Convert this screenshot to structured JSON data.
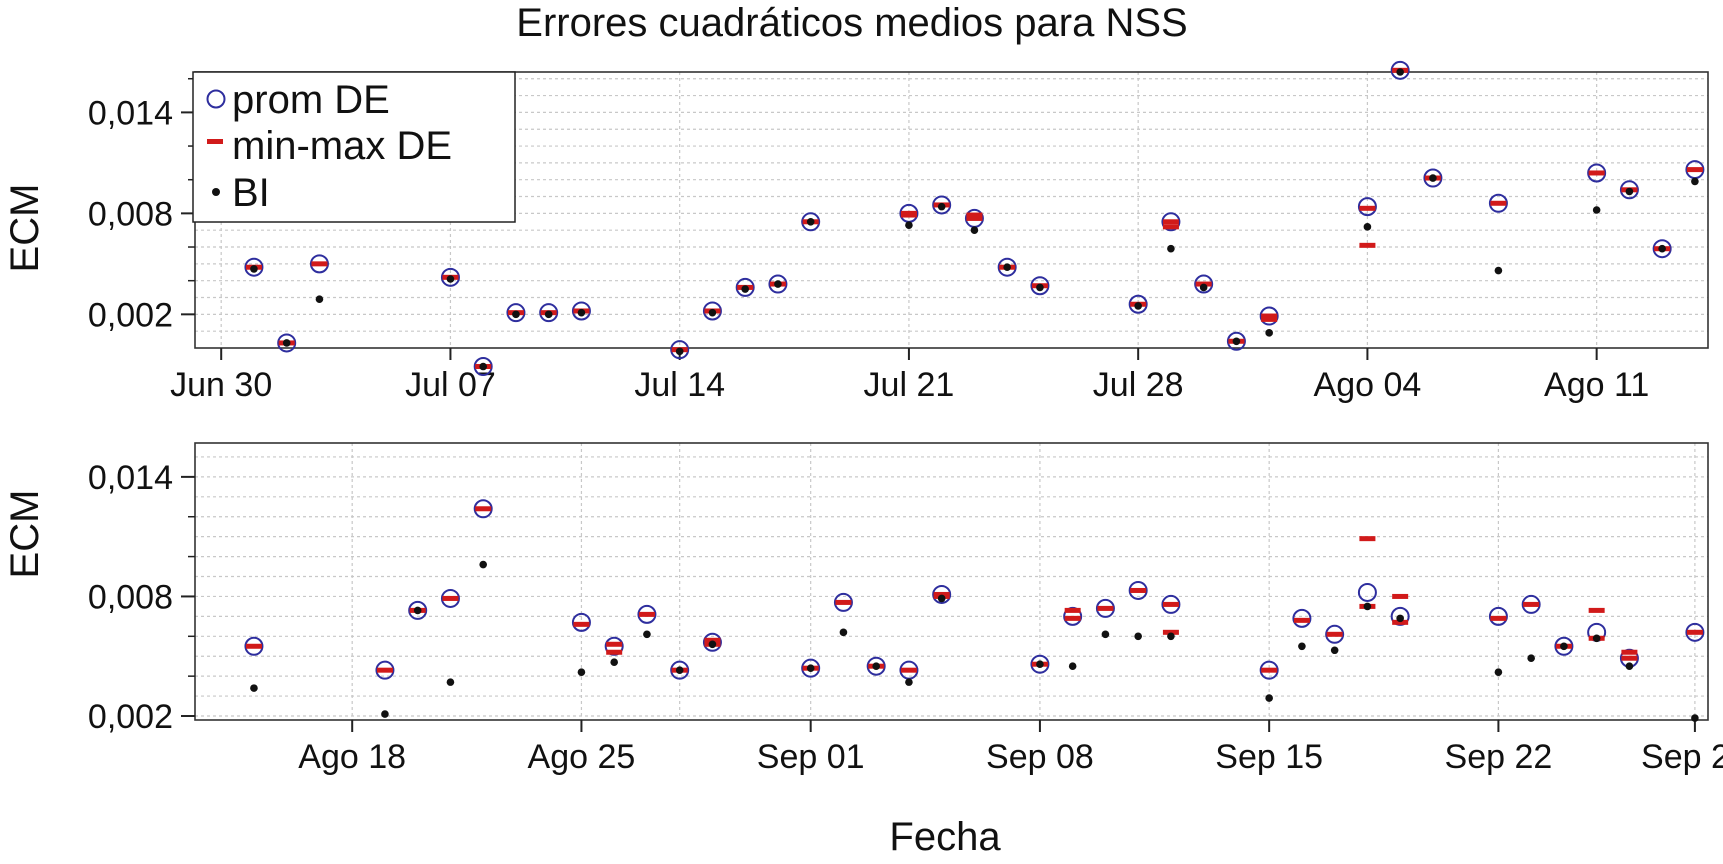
{
  "chart_data": {
    "type": "scatter",
    "title": "Errores cuadráticos medios para NSS",
    "xlabel": "Fecha",
    "ylabel": "ECM",
    "y_format": "comma-decimal",
    "legend": {
      "placement": "top-left (upper panel)",
      "entries": [
        {
          "label": "prom DE",
          "marker": "open-circle",
          "color": "#2e2e9e"
        },
        {
          "label": "min-max DE",
          "marker": "dash",
          "color": "#d11a1a"
        },
        {
          "label": "BI",
          "marker": "dot",
          "color": "#111111"
        }
      ]
    },
    "panels": [
      {
        "xlim": [
          -0.8,
          45.4
        ],
        "ylim": [
          0.0,
          0.0164
        ],
        "yticks": [
          0.002,
          0.008,
          0.014
        ],
        "ytick_labels": [
          "0,002",
          "0,008",
          "0,014"
        ],
        "xticks": [
          0,
          7,
          14,
          21,
          28,
          35,
          42
        ],
        "xtick_labels": [
          "Jun 30",
          "Jul 07",
          "Jul 14",
          "Jul 21",
          "Jul 28",
          "Ago 04",
          "Ago 11"
        ],
        "vgrid": [
          0,
          7,
          14,
          21,
          28,
          35,
          42
        ],
        "prom": [
          [
            1,
            0.0048
          ],
          [
            2,
            0.0003
          ],
          [
            3,
            0.005
          ],
          [
            7,
            0.0042
          ],
          [
            8,
            -0.0011
          ],
          [
            9,
            0.0021
          ],
          [
            10,
            0.0021
          ],
          [
            11,
            0.0022
          ],
          [
            14,
            -0.0001
          ],
          [
            15,
            0.0022
          ],
          [
            16,
            0.0036
          ],
          [
            17,
            0.0038
          ],
          [
            18,
            0.0075
          ],
          [
            21,
            0.008
          ],
          [
            22,
            0.0085
          ],
          [
            23,
            0.0077
          ],
          [
            24,
            0.0048
          ],
          [
            25,
            0.0037
          ],
          [
            28,
            0.0026
          ],
          [
            29,
            0.0075
          ],
          [
            30,
            0.0038
          ],
          [
            31,
            0.0004
          ],
          [
            32,
            0.0019
          ],
          [
            35,
            0.0084
          ],
          [
            36,
            0.0165
          ],
          [
            37,
            0.0101
          ],
          [
            39,
            0.0086
          ],
          [
            42,
            0.0104
          ],
          [
            43,
            0.0094
          ],
          [
            44,
            0.0059
          ],
          [
            45,
            0.0106
          ]
        ],
        "minmax": [
          [
            1,
            0.0048
          ],
          [
            2,
            0.0003
          ],
          [
            3,
            0.005
          ],
          [
            7,
            0.0042
          ],
          [
            8,
            -0.0011
          ],
          [
            9,
            0.0021
          ],
          [
            10,
            0.0021
          ],
          [
            11,
            0.0022
          ],
          [
            14,
            -0.0001
          ],
          [
            15,
            0.0022
          ],
          [
            16,
            0.0036
          ],
          [
            17,
            0.0038
          ],
          [
            18,
            0.0075
          ],
          [
            21,
            0.008
          ],
          [
            21,
            0.0079
          ],
          [
            22,
            0.0085
          ],
          [
            23,
            0.0077
          ],
          [
            23,
            0.0079
          ],
          [
            24,
            0.0048
          ],
          [
            25,
            0.0037
          ],
          [
            28,
            0.0026
          ],
          [
            29,
            0.0075
          ],
          [
            29,
            0.0072
          ],
          [
            30,
            0.0038
          ],
          [
            31,
            0.0004
          ],
          [
            32,
            0.0019
          ],
          [
            32,
            0.0017
          ],
          [
            35,
            0.0083
          ],
          [
            35,
            0.0061
          ],
          [
            36,
            0.0165
          ],
          [
            37,
            0.0101
          ],
          [
            39,
            0.0086
          ],
          [
            42,
            0.0104
          ],
          [
            43,
            0.0094
          ],
          [
            44,
            0.0059
          ],
          [
            45,
            0.0106
          ]
        ],
        "bi": [
          [
            1,
            0.0047
          ],
          [
            2,
            0.0003
          ],
          [
            3,
            0.0029
          ],
          [
            7,
            0.0041
          ],
          [
            8,
            -0.0011
          ],
          [
            9,
            0.002
          ],
          [
            10,
            0.002
          ],
          [
            11,
            0.0021
          ],
          [
            14,
            -0.0002
          ],
          [
            15,
            0.0021
          ],
          [
            16,
            0.0035
          ],
          [
            17,
            0.0038
          ],
          [
            18,
            0.0075
          ],
          [
            21,
            0.0073
          ],
          [
            22,
            0.0084
          ],
          [
            23,
            0.007
          ],
          [
            24,
            0.0048
          ],
          [
            25,
            0.0036
          ],
          [
            28,
            0.0025
          ],
          [
            29,
            0.0059
          ],
          [
            30,
            0.0036
          ],
          [
            31,
            0.0004
          ],
          [
            32,
            0.0009
          ],
          [
            35,
            0.0072
          ],
          [
            36,
            0.0164
          ],
          [
            37,
            0.0101
          ],
          [
            39,
            0.0046
          ],
          [
            42,
            0.0082
          ],
          [
            43,
            0.0093
          ],
          [
            44,
            0.0059
          ],
          [
            45,
            0.0099
          ]
        ]
      },
      {
        "xlim": [
          -0.8,
          45.4
        ],
        "ylim": [
          0.0018,
          0.0157
        ],
        "yticks": [
          0.002,
          0.008,
          0.014
        ],
        "ytick_labels": [
          "0,002",
          "0,008",
          "0,014"
        ],
        "xticks": [
          4,
          11,
          18,
          25,
          32,
          39,
          45
        ],
        "xtick_labels": [
          "Ago 18",
          "Ago 25",
          "Sep 01",
          "Sep 08",
          "Sep 15",
          "Sep 22",
          "Sep 29"
        ],
        "vgrid": [
          4,
          11,
          14,
          18,
          25,
          32,
          39,
          45
        ],
        "prom": [
          [
            1,
            0.0055
          ],
          [
            5,
            0.0043
          ],
          [
            6,
            0.0073
          ],
          [
            7,
            0.0079
          ],
          [
            8,
            0.0124
          ],
          [
            11,
            0.0067
          ],
          [
            12,
            0.0055
          ],
          [
            13,
            0.0071
          ],
          [
            14,
            0.0043
          ],
          [
            15,
            0.0057
          ],
          [
            18,
            0.0044
          ],
          [
            19,
            0.0077
          ],
          [
            20,
            0.0045
          ],
          [
            21,
            0.0043
          ],
          [
            22,
            0.0081
          ],
          [
            25,
            0.0046
          ],
          [
            26,
            0.007
          ],
          [
            27,
            0.0074
          ],
          [
            28,
            0.0083
          ],
          [
            29,
            0.0076
          ],
          [
            32,
            0.0043
          ],
          [
            33,
            0.0069
          ],
          [
            34,
            0.0061
          ],
          [
            35,
            0.0082
          ],
          [
            36,
            0.007
          ],
          [
            39,
            0.007
          ],
          [
            40,
            0.0076
          ],
          [
            41,
            0.0055
          ],
          [
            42,
            0.0062
          ],
          [
            43,
            0.0049
          ],
          [
            45,
            0.0062
          ]
        ],
        "minmax": [
          [
            1,
            0.0055
          ],
          [
            5,
            0.0043
          ],
          [
            6,
            0.0073
          ],
          [
            7,
            0.0079
          ],
          [
            8,
            0.0124
          ],
          [
            11,
            0.0066
          ],
          [
            12,
            0.0056
          ],
          [
            12,
            0.0052
          ],
          [
            13,
            0.0071
          ],
          [
            14,
            0.0043
          ],
          [
            15,
            0.0058
          ],
          [
            15,
            0.0056
          ],
          [
            18,
            0.0044
          ],
          [
            19,
            0.0077
          ],
          [
            20,
            0.0045
          ],
          [
            21,
            0.0043
          ],
          [
            22,
            0.008
          ],
          [
            22,
            0.0081
          ],
          [
            25,
            0.0046
          ],
          [
            26,
            0.0073
          ],
          [
            26,
            0.0069
          ],
          [
            27,
            0.0074
          ],
          [
            28,
            0.0083
          ],
          [
            29,
            0.0076
          ],
          [
            29,
            0.0062
          ],
          [
            32,
            0.0043
          ],
          [
            33,
            0.0068
          ],
          [
            34,
            0.0061
          ],
          [
            35,
            0.0109
          ],
          [
            35,
            0.0075
          ],
          [
            36,
            0.008
          ],
          [
            36,
            0.0067
          ],
          [
            39,
            0.0069
          ],
          [
            40,
            0.0076
          ],
          [
            41,
            0.0055
          ],
          [
            42,
            0.0073
          ],
          [
            42,
            0.0059
          ],
          [
            43,
            0.0052
          ],
          [
            43,
            0.0049
          ],
          [
            45,
            0.0062
          ]
        ],
        "bi": [
          [
            1,
            0.0034
          ],
          [
            5,
            0.0021
          ],
          [
            6,
            0.0073
          ],
          [
            7,
            0.0037
          ],
          [
            8,
            0.0096
          ],
          [
            11,
            0.0042
          ],
          [
            12,
            0.0047
          ],
          [
            13,
            0.0061
          ],
          [
            14,
            0.0043
          ],
          [
            15,
            0.0056
          ],
          [
            18,
            0.0044
          ],
          [
            19,
            0.0062
          ],
          [
            20,
            0.0045
          ],
          [
            21,
            0.0037
          ],
          [
            22,
            0.0079
          ],
          [
            25,
            0.0046
          ],
          [
            26,
            0.0045
          ],
          [
            27,
            0.0061
          ],
          [
            28,
            0.006
          ],
          [
            29,
            0.006
          ],
          [
            32,
            0.0029
          ],
          [
            33,
            0.0055
          ],
          [
            34,
            0.0053
          ],
          [
            35,
            0.0075
          ],
          [
            36,
            0.0069
          ],
          [
            39,
            0.0042
          ],
          [
            40,
            0.0049
          ],
          [
            41,
            0.0055
          ],
          [
            42,
            0.0059
          ],
          [
            43,
            0.0045
          ],
          [
            45,
            0.0019
          ]
        ]
      }
    ]
  }
}
